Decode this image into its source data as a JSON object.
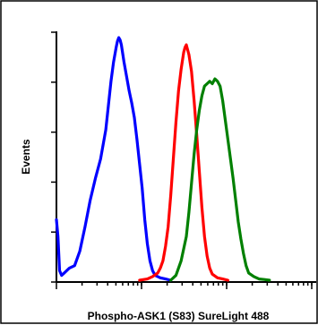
{
  "chart_data": {
    "type": "line",
    "title": "",
    "xlabel": "Phospho-ASK1 (S83) SureLight 488",
    "ylabel": "Events",
    "grid": false,
    "legend": "none",
    "x_tick_count": 5,
    "y_tick_count": 6,
    "xlim": [
      0,
      100
    ],
    "ylim": [
      0,
      100
    ],
    "series": [
      {
        "color": "#0000ff",
        "x": [
          0,
          0.6,
          1.2,
          2,
          3,
          5,
          7,
          9,
          11,
          13,
          15,
          17,
          19,
          20,
          21,
          22,
          23,
          23.5,
          24,
          24.5,
          25,
          26,
          27,
          28,
          29,
          30,
          31,
          32,
          33,
          34,
          35,
          36,
          37,
          38,
          40,
          42,
          44
        ],
        "y": [
          25,
          18,
          4,
          2,
          3,
          5,
          6,
          12,
          22,
          33,
          42,
          50,
          62,
          72,
          82,
          90,
          96,
          98.5,
          100,
          99,
          97,
          90,
          84,
          78,
          73,
          67,
          58,
          48,
          38,
          25,
          15,
          8,
          4,
          2,
          1,
          0.5,
          0
        ]
      },
      {
        "color": "#ff0000",
        "x": [
          32,
          35,
          37,
          39,
          40,
          41,
          42,
          43,
          44,
          45,
          46,
          47,
          48,
          49,
          49.5,
          50,
          51,
          52,
          53,
          54,
          55,
          56,
          57,
          58,
          59,
          60,
          62,
          64,
          66
        ],
        "y": [
          0,
          0.5,
          1.5,
          3,
          5,
          8,
          14,
          22,
          35,
          50,
          65,
          78,
          87,
          94,
          96,
          97,
          93,
          86,
          74,
          60,
          45,
          30,
          18,
          10,
          5,
          2.5,
          1,
          0.5,
          0
        ]
      },
      {
        "color": "#008000",
        "x": [
          44,
          46,
          48,
          50,
          51,
          52,
          53,
          54,
          55,
          56,
          57,
          58,
          59,
          60,
          61,
          62,
          63,
          64,
          65,
          66,
          67,
          68,
          69,
          70,
          71,
          72,
          73,
          74,
          76,
          78,
          80,
          82
        ],
        "y": [
          0,
          2,
          8,
          18,
          28,
          40,
          52,
          62,
          70,
          76,
          80,
          81,
          82,
          81,
          83,
          82,
          80,
          74,
          66,
          58,
          50,
          42,
          33,
          24,
          17,
          11,
          6,
          3,
          1.5,
          0.5,
          0.3,
          0
        ]
      }
    ]
  }
}
